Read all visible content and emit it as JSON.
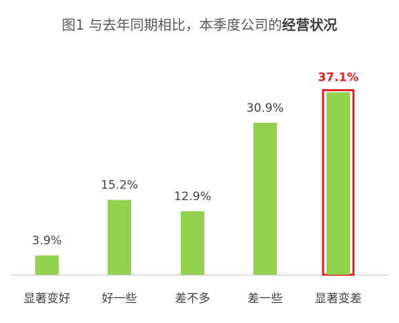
{
  "chart_data": {
    "type": "bar",
    "title_prefix": "图1 与去年同期相比，本季度公司的",
    "title_emphasis": "经营状况",
    "categories": [
      "显著变好",
      "好一些",
      "差不多",
      "差一些",
      "显著变差"
    ],
    "values": [
      3.9,
      15.2,
      12.9,
      30.9,
      37.1
    ],
    "value_labels": [
      "3.9%",
      "15.2%",
      "12.9%",
      "30.9%",
      "37.1%"
    ],
    "highlight_index": 4,
    "ylim": [
      0,
      40
    ],
    "grid": false,
    "legend": "none",
    "colors": {
      "bar": "#92d050",
      "highlight_outline": "#e02020",
      "highlight_label": "#e02020",
      "label": "#404040",
      "axis": "#bfbfbf"
    }
  }
}
